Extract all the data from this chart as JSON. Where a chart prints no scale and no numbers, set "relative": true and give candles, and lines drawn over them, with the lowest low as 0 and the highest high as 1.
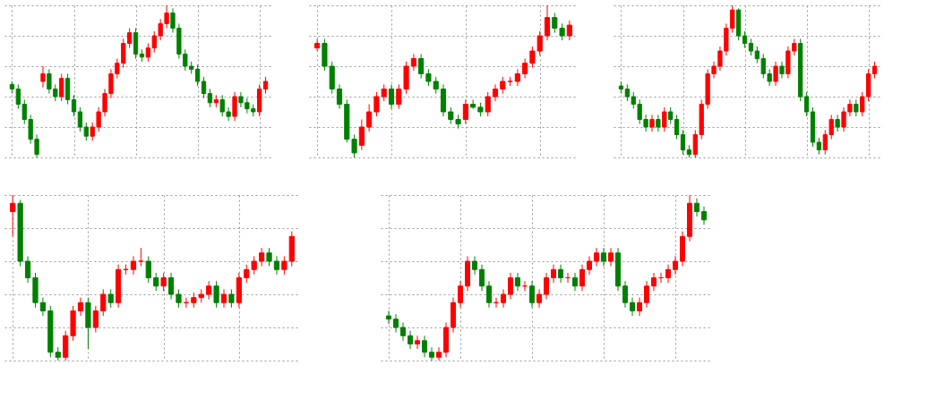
{
  "chart_data": [
    {
      "type": "candlestick",
      "relative": true,
      "grid": true,
      "colors": [
        "#008000",
        "#008000",
        "#008000",
        "#008000",
        "#008000",
        "#ff0000",
        "#008000",
        "#008000",
        "#ff0000",
        "#008000",
        "#008000",
        "#008000",
        "#008000",
        "#ff0000",
        "#ff0000",
        "#ff0000",
        "#ff0000",
        "#ff0000",
        "#ff0000",
        "#ff0000",
        "#008000",
        "#008000",
        "#ff0000",
        "#ff0000",
        "#ff0000",
        "#ff0000",
        "#008000",
        "#008000",
        "#008000",
        "#008000",
        "#008000",
        "#008000",
        "#008000",
        "#ff0000",
        "#008000",
        "#008000",
        "#ff0000",
        "#008000",
        "#008000",
        "#008000",
        "#ff0000",
        "#ff0000"
      ],
      "categories": [
        null,
        null,
        null,
        null,
        null,
        null,
        null,
        null,
        null,
        null,
        null,
        null,
        null,
        null,
        null,
        null,
        null,
        null,
        null,
        null,
        null,
        null,
        null,
        null,
        null,
        null,
        null,
        null,
        null,
        null,
        null,
        null,
        null,
        null,
        null,
        null,
        null,
        null,
        null,
        null,
        null,
        null
      ],
      "ohlc": [
        [
          0.48,
          0.5,
          0.42,
          0.45
        ],
        [
          0.45,
          0.48,
          0.32,
          0.35
        ],
        [
          0.35,
          0.38,
          0.22,
          0.25
        ],
        [
          0.25,
          0.28,
          0.09,
          0.12
        ],
        [
          0.12,
          0.15,
          0,
          0.02
        ],
        [
          0.5,
          0.6,
          0.46,
          0.55
        ],
        [
          0.55,
          0.58,
          0.42,
          0.45
        ],
        [
          0.45,
          0.48,
          0.37,
          0.4
        ],
        [
          0.4,
          0.55,
          0.37,
          0.52
        ],
        [
          0.52,
          0.55,
          0.35,
          0.38
        ],
        [
          0.38,
          0.41,
          0.27,
          0.3
        ],
        [
          0.3,
          0.33,
          0.17,
          0.2
        ],
        [
          0.2,
          0.23,
          0.11,
          0.14
        ],
        [
          0.14,
          0.23,
          0.11,
          0.2
        ],
        [
          0.2,
          0.33,
          0.17,
          0.3
        ],
        [
          0.3,
          0.45,
          0.27,
          0.42
        ],
        [
          0.42,
          0.58,
          0.39,
          0.55
        ],
        [
          0.55,
          0.65,
          0.52,
          0.62
        ],
        [
          0.62,
          0.78,
          0.59,
          0.75
        ],
        [
          0.75,
          0.85,
          0.72,
          0.82
        ],
        [
          0.82,
          0.85,
          0.65,
          0.68
        ],
        [
          0.68,
          0.71,
          0.63,
          0.66
        ],
        [
          0.66,
          0.75,
          0.63,
          0.72
        ],
        [
          0.72,
          0.83,
          0.69,
          0.8
        ],
        [
          0.8,
          0.91,
          0.77,
          0.88
        ],
        [
          0.88,
          1,
          0.85,
          0.95
        ],
        [
          0.95,
          0.98,
          0.82,
          0.85
        ],
        [
          0.85,
          0.88,
          0.65,
          0.68
        ],
        [
          0.68,
          0.71,
          0.57,
          0.6
        ],
        [
          0.6,
          0.63,
          0.55,
          0.58
        ],
        [
          0.58,
          0.61,
          0.47,
          0.5
        ],
        [
          0.5,
          0.53,
          0.39,
          0.42
        ],
        [
          0.42,
          0.45,
          0.33,
          0.36
        ],
        [
          0.36,
          0.41,
          0.33,
          0.38
        ],
        [
          0.38,
          0.41,
          0.27,
          0.3
        ],
        [
          0.3,
          0.33,
          0.24,
          0.27
        ],
        [
          0.27,
          0.43,
          0.24,
          0.4
        ],
        [
          0.4,
          0.43,
          0.33,
          0.36
        ],
        [
          0.36,
          0.39,
          0.29,
          0.32
        ],
        [
          0.32,
          0.35,
          0.27,
          0.3
        ],
        [
          0.3,
          0.48,
          0.27,
          0.45
        ],
        [
          0.45,
          0.53,
          0.42,
          0.5
        ]
      ]
    },
    {
      "type": "candlestick",
      "relative": true,
      "grid": true,
      "colors": [
        "#ff0000",
        "#008000",
        "#008000",
        "#008000",
        "#008000",
        "#008000",
        "#ff0000",
        "#ff0000",
        "#ff0000",
        "#ff0000",
        "#008000",
        "#ff0000",
        "#ff0000",
        "#ff0000",
        "#008000",
        "#008000",
        "#008000",
        "#008000",
        "#008000",
        "#008000",
        "#ff0000",
        "#008000",
        "#008000",
        "#ff0000",
        "#ff0000",
        "#ff0000",
        "#ff0000",
        "#ff0000",
        "#ff0000",
        "#ff0000",
        "#ff0000",
        "#ff0000",
        "#008000",
        "#008000",
        "#ff0000"
      ],
      "categories": [
        null,
        null,
        null,
        null,
        null,
        null,
        null,
        null,
        null,
        null,
        null,
        null,
        null,
        null,
        null,
        null,
        null,
        null,
        null,
        null,
        null,
        null,
        null,
        null,
        null,
        null,
        null,
        null,
        null,
        null,
        null,
        null,
        null,
        null,
        null
      ],
      "ohlc": [
        [
          0.72,
          0.78,
          0.7,
          0.75
        ],
        [
          0.75,
          0.78,
          0.57,
          0.6
        ],
        [
          0.6,
          0.63,
          0.42,
          0.45
        ],
        [
          0.45,
          0.48,
          0.32,
          0.35
        ],
        [
          0.35,
          0.38,
          0.1,
          0.12
        ],
        [
          0.12,
          0.15,
          0,
          0.03
        ],
        [
          0.08,
          0.25,
          0.05,
          0.2
        ],
        [
          0.2,
          0.35,
          0.17,
          0.3
        ],
        [
          0.3,
          0.43,
          0.27,
          0.4
        ],
        [
          0.4,
          0.48,
          0.37,
          0.45
        ],
        [
          0.45,
          0.48,
          0.32,
          0.35
        ],
        [
          0.35,
          0.48,
          0.32,
          0.45
        ],
        [
          0.45,
          0.63,
          0.42,
          0.6
        ],
        [
          0.6,
          0.68,
          0.57,
          0.65
        ],
        [
          0.65,
          0.68,
          0.52,
          0.55
        ],
        [
          0.55,
          0.58,
          0.47,
          0.5
        ],
        [
          0.5,
          0.53,
          0.42,
          0.45
        ],
        [
          0.45,
          0.48,
          0.27,
          0.3
        ],
        [
          0.3,
          0.33,
          0.22,
          0.25
        ],
        [
          0.25,
          0.28,
          0.19,
          0.22
        ],
        [
          0.25,
          0.38,
          0.22,
          0.35
        ],
        [
          0.35,
          0.38,
          0.32,
          0.33
        ],
        [
          0.33,
          0.36,
          0.27,
          0.3
        ],
        [
          0.3,
          0.43,
          0.27,
          0.4
        ],
        [
          0.4,
          0.48,
          0.37,
          0.45
        ],
        [
          0.45,
          0.53,
          0.42,
          0.5
        ],
        [
          0.5,
          0.53,
          0.47,
          0.5
        ],
        [
          0.5,
          0.58,
          0.47,
          0.55
        ],
        [
          0.55,
          0.65,
          0.52,
          0.62
        ],
        [
          0.62,
          0.73,
          0.59,
          0.7
        ],
        [
          0.7,
          0.83,
          0.67,
          0.8
        ],
        [
          0.8,
          1,
          0.77,
          0.92
        ],
        [
          0.92,
          0.95,
          0.82,
          0.85
        ],
        [
          0.85,
          0.88,
          0.77,
          0.8
        ],
        [
          0.8,
          0.9,
          0.77,
          0.87
        ]
      ]
    },
    {
      "type": "candlestick",
      "relative": true,
      "grid": true,
      "colors": [
        "#008000",
        "#008000",
        "#008000",
        "#008000",
        "#008000",
        "#ff0000",
        "#008000",
        "#ff0000",
        "#008000",
        "#008000",
        "#008000",
        "#008000",
        "#ff0000",
        "#ff0000",
        "#ff0000",
        "#ff0000",
        "#ff0000",
        "#ff0000",
        "#ff0000",
        "#008000",
        "#008000",
        "#008000",
        "#008000",
        "#008000",
        "#008000",
        "#ff0000",
        "#008000",
        "#ff0000",
        "#ff0000",
        "#008000",
        "#008000",
        "#008000",
        "#008000",
        "#ff0000",
        "#ff0000",
        "#008000",
        "#ff0000",
        "#ff0000",
        "#008000",
        "#ff0000",
        "#ff0000",
        "#ff0000"
      ],
      "categories": [
        null,
        null,
        null,
        null,
        null,
        null,
        null,
        null,
        null,
        null,
        null,
        null,
        null,
        null,
        null,
        null,
        null,
        null,
        null,
        null,
        null,
        null,
        null,
        null,
        null,
        null,
        null,
        null,
        null,
        null,
        null,
        null,
        null,
        null,
        null,
        null,
        null,
        null,
        null,
        null,
        null,
        null
      ],
      "ohlc": [
        [
          0.47,
          0.5,
          0.42,
          0.45
        ],
        [
          0.45,
          0.48,
          0.37,
          0.4
        ],
        [
          0.4,
          0.43,
          0.32,
          0.35
        ],
        [
          0.35,
          0.38,
          0.22,
          0.25
        ],
        [
          0.25,
          0.28,
          0.17,
          0.2
        ],
        [
          0.2,
          0.28,
          0.17,
          0.25
        ],
        [
          0.25,
          0.28,
          0.17,
          0.2
        ],
        [
          0.2,
          0.33,
          0.17,
          0.3
        ],
        [
          0.3,
          0.33,
          0.22,
          0.25
        ],
        [
          0.25,
          0.28,
          0.12,
          0.15
        ],
        [
          0.15,
          0.18,
          0.02,
          0.05
        ],
        [
          0.05,
          0.08,
          0,
          0.02
        ],
        [
          0.02,
          0.18,
          0,
          0.15
        ],
        [
          0.15,
          0.38,
          0.12,
          0.35
        ],
        [
          0.35,
          0.58,
          0.32,
          0.55
        ],
        [
          0.55,
          0.63,
          0.52,
          0.6
        ],
        [
          0.6,
          0.73,
          0.57,
          0.7
        ],
        [
          0.7,
          0.88,
          0.67,
          0.85
        ],
        [
          0.85,
          1,
          0.82,
          0.97
        ],
        [
          0.97,
          0.98,
          0.77,
          0.8
        ],
        [
          0.8,
          0.83,
          0.72,
          0.75
        ],
        [
          0.75,
          0.78,
          0.67,
          0.7
        ],
        [
          0.7,
          0.73,
          0.62,
          0.65
        ],
        [
          0.65,
          0.68,
          0.52,
          0.55
        ],
        [
          0.55,
          0.58,
          0.47,
          0.5
        ],
        [
          0.5,
          0.63,
          0.47,
          0.6
        ],
        [
          0.6,
          0.63,
          0.52,
          0.55
        ],
        [
          0.55,
          0.73,
          0.52,
          0.7
        ],
        [
          0.7,
          0.78,
          0.67,
          0.75
        ],
        [
          0.75,
          0.78,
          0.37,
          0.4
        ],
        [
          0.4,
          0.43,
          0.27,
          0.3
        ],
        [
          0.3,
          0.33,
          0.07,
          0.1
        ],
        [
          0.1,
          0.13,
          0.02,
          0.05
        ],
        [
          0.05,
          0.18,
          0.02,
          0.15
        ],
        [
          0.15,
          0.28,
          0.12,
          0.25
        ],
        [
          0.25,
          0.28,
          0.17,
          0.2
        ],
        [
          0.2,
          0.33,
          0.17,
          0.3
        ],
        [
          0.3,
          0.38,
          0.27,
          0.35
        ],
        [
          0.35,
          0.38,
          0.27,
          0.3
        ],
        [
          0.3,
          0.43,
          0.27,
          0.4
        ],
        [
          0.4,
          0.58,
          0.37,
          0.55
        ],
        [
          0.55,
          0.63,
          0.52,
          0.6
        ]
      ]
    },
    {
      "type": "candlestick",
      "relative": true,
      "grid": true,
      "colors": [
        "#ff0000",
        "#008000",
        "#008000",
        "#008000",
        "#008000",
        "#008000",
        "#008000",
        "#ff0000",
        "#ff0000",
        "#ff0000",
        "#008000",
        "#ff0000",
        "#ff0000",
        "#008000",
        "#ff0000",
        "#ff0000",
        "#ff0000",
        "#ff0000",
        "#008000",
        "#008000",
        "#ff0000",
        "#008000",
        "#008000",
        "#ff0000",
        "#ff0000",
        "#ff0000",
        "#ff0000",
        "#008000",
        "#ff0000",
        "#008000",
        "#ff0000",
        "#ff0000",
        "#ff0000",
        "#ff0000",
        "#008000",
        "#008000",
        "#ff0000",
        "#ff0000"
      ],
      "categories": [
        null,
        null,
        null,
        null,
        null,
        null,
        null,
        null,
        null,
        null,
        null,
        null,
        null,
        null,
        null,
        null,
        null,
        null,
        null,
        null,
        null,
        null,
        null,
        null,
        null,
        null,
        null,
        null,
        null,
        null,
        null,
        null,
        null,
        null,
        null,
        null,
        null,
        null
      ],
      "ohlc": [
        [
          0.9,
          1,
          0.75,
          0.95
        ],
        [
          0.95,
          0.97,
          0.57,
          0.6
        ],
        [
          0.6,
          0.63,
          0.47,
          0.5
        ],
        [
          0.5,
          0.53,
          0.32,
          0.35
        ],
        [
          0.35,
          0.38,
          0.27,
          0.3
        ],
        [
          0.3,
          0.33,
          0.02,
          0.05
        ],
        [
          0.05,
          0.08,
          0,
          0.02
        ],
        [
          0.02,
          0.18,
          0,
          0.15
        ],
        [
          0.15,
          0.33,
          0.12,
          0.3
        ],
        [
          0.3,
          0.38,
          0.27,
          0.35
        ],
        [
          0.35,
          0.38,
          0.07,
          0.2
        ],
        [
          0.2,
          0.33,
          0.17,
          0.3
        ],
        [
          0.3,
          0.43,
          0.27,
          0.4
        ],
        [
          0.4,
          0.43,
          0.32,
          0.35
        ],
        [
          0.35,
          0.58,
          0.32,
          0.55
        ],
        [
          0.55,
          0.58,
          0.52,
          0.55
        ],
        [
          0.55,
          0.63,
          0.52,
          0.6
        ],
        [
          0.6,
          0.68,
          0.57,
          0.6
        ],
        [
          0.6,
          0.63,
          0.47,
          0.5
        ],
        [
          0.5,
          0.53,
          0.42,
          0.45
        ],
        [
          0.45,
          0.53,
          0.42,
          0.5
        ],
        [
          0.5,
          0.53,
          0.37,
          0.4
        ],
        [
          0.4,
          0.43,
          0.32,
          0.35
        ],
        [
          0.35,
          0.38,
          0.32,
          0.35
        ],
        [
          0.35,
          0.41,
          0.32,
          0.38
        ],
        [
          0.38,
          0.43,
          0.35,
          0.4
        ],
        [
          0.4,
          0.48,
          0.37,
          0.45
        ],
        [
          0.45,
          0.48,
          0.32,
          0.35
        ],
        [
          0.35,
          0.43,
          0.32,
          0.4
        ],
        [
          0.4,
          0.43,
          0.32,
          0.35
        ],
        [
          0.35,
          0.53,
          0.32,
          0.5
        ],
        [
          0.5,
          0.58,
          0.47,
          0.55
        ],
        [
          0.55,
          0.63,
          0.52,
          0.6
        ],
        [
          0.6,
          0.68,
          0.57,
          0.65
        ],
        [
          0.65,
          0.68,
          0.57,
          0.6
        ],
        [
          0.6,
          0.63,
          0.52,
          0.55
        ],
        [
          0.55,
          0.63,
          0.52,
          0.6
        ],
        [
          0.6,
          0.78,
          0.57,
          0.75
        ]
      ]
    },
    {
      "type": "candlestick",
      "relative": true,
      "grid": true,
      "colors": [
        "#008000",
        "#008000",
        "#008000",
        "#008000",
        "#ff0000",
        "#008000",
        "#008000",
        "#ff0000",
        "#ff0000",
        "#ff0000",
        "#ff0000",
        "#ff0000",
        "#008000",
        "#008000",
        "#008000",
        "#ff0000",
        "#ff0000",
        "#ff0000",
        "#008000",
        "#ff0000",
        "#008000",
        "#ff0000",
        "#ff0000",
        "#ff0000",
        "#008000",
        "#ff0000",
        "#008000",
        "#ff0000",
        "#ff0000",
        "#ff0000",
        "#008000",
        "#ff0000",
        "#008000",
        "#008000",
        "#008000",
        "#ff0000",
        "#ff0000",
        "#ff0000",
        "#ff0000",
        "#ff0000",
        "#ff0000",
        "#ff0000",
        "#ff0000",
        "#008000",
        "#008000"
      ],
      "categories": [
        null,
        null,
        null,
        null,
        null,
        null,
        null,
        null,
        null,
        null,
        null,
        null,
        null,
        null,
        null,
        null,
        null,
        null,
        null,
        null,
        null,
        null,
        null,
        null,
        null,
        null,
        null,
        null,
        null,
        null,
        null,
        null,
        null,
        null,
        null,
        null,
        null,
        null,
        null,
        null,
        null,
        null,
        null,
        null,
        null
      ],
      "ohlc": [
        [
          0.27,
          0.3,
          0.22,
          0.25
        ],
        [
          0.25,
          0.28,
          0.17,
          0.2
        ],
        [
          0.2,
          0.23,
          0.12,
          0.15
        ],
        [
          0.15,
          0.18,
          0.07,
          0.1
        ],
        [
          0.1,
          0.15,
          0.07,
          0.12
        ],
        [
          0.12,
          0.15,
          0.02,
          0.05
        ],
        [
          0.05,
          0.08,
          0,
          0.02
        ],
        [
          0.02,
          0.08,
          0,
          0.05
        ],
        [
          0.05,
          0.23,
          0.02,
          0.2
        ],
        [
          0.2,
          0.38,
          0.17,
          0.35
        ],
        [
          0.35,
          0.48,
          0.32,
          0.45
        ],
        [
          0.45,
          0.63,
          0.42,
          0.6
        ],
        [
          0.6,
          0.63,
          0.52,
          0.55
        ],
        [
          0.55,
          0.58,
          0.42,
          0.45
        ],
        [
          0.45,
          0.48,
          0.32,
          0.35
        ],
        [
          0.35,
          0.38,
          0.32,
          0.35
        ],
        [
          0.35,
          0.43,
          0.32,
          0.4
        ],
        [
          0.4,
          0.53,
          0.37,
          0.5
        ],
        [
          0.5,
          0.53,
          0.42,
          0.45
        ],
        [
          0.45,
          0.48,
          0.42,
          0.45
        ],
        [
          0.45,
          0.48,
          0.32,
          0.35
        ],
        [
          0.35,
          0.43,
          0.32,
          0.4
        ],
        [
          0.4,
          0.53,
          0.37,
          0.5
        ],
        [
          0.5,
          0.58,
          0.47,
          0.55
        ],
        [
          0.55,
          0.58,
          0.47,
          0.5
        ],
        [
          0.5,
          0.53,
          0.47,
          0.5
        ],
        [
          0.5,
          0.53,
          0.42,
          0.45
        ],
        [
          0.45,
          0.58,
          0.42,
          0.55
        ],
        [
          0.55,
          0.63,
          0.52,
          0.6
        ],
        [
          0.6,
          0.68,
          0.57,
          0.65
        ],
        [
          0.65,
          0.68,
          0.57,
          0.6
        ],
        [
          0.6,
          0.68,
          0.57,
          0.65
        ],
        [
          0.65,
          0.68,
          0.42,
          0.45
        ],
        [
          0.45,
          0.48,
          0.32,
          0.35
        ],
        [
          0.35,
          0.38,
          0.27,
          0.3
        ],
        [
          0.3,
          0.38,
          0.27,
          0.35
        ],
        [
          0.35,
          0.48,
          0.32,
          0.45
        ],
        [
          0.45,
          0.53,
          0.42,
          0.5
        ],
        [
          0.5,
          0.53,
          0.47,
          0.5
        ],
        [
          0.5,
          0.58,
          0.47,
          0.55
        ],
        [
          0.55,
          0.63,
          0.52,
          0.6
        ],
        [
          0.6,
          0.78,
          0.57,
          0.75
        ],
        [
          0.75,
          1,
          0.72,
          0.95
        ],
        [
          0.95,
          0.98,
          0.87,
          0.9
        ],
        [
          0.9,
          0.93,
          0.82,
          0.85
        ]
      ]
    }
  ]
}
